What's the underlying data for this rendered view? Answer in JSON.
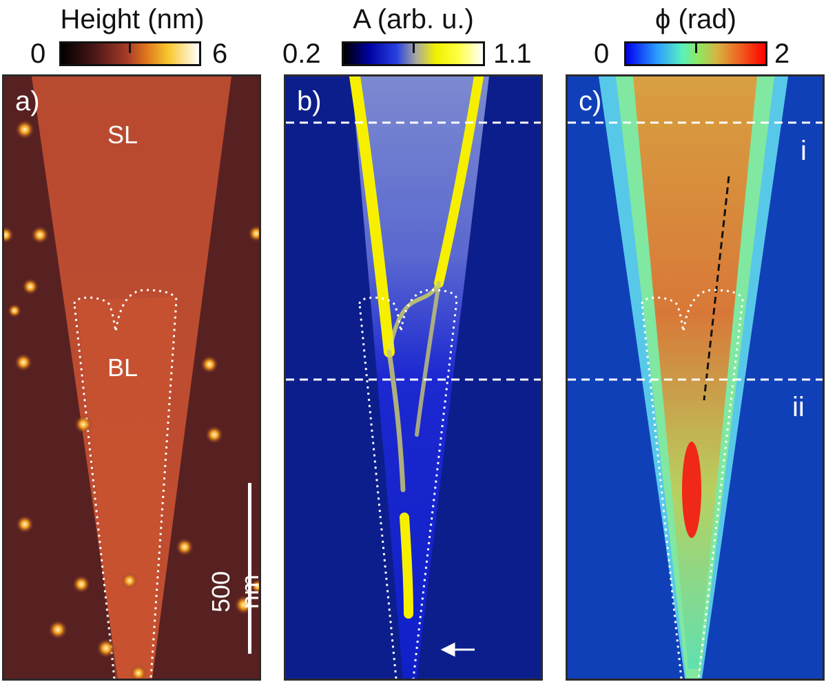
{
  "panels": [
    {
      "label": "a)",
      "colorbar": {
        "title": "Height (nm)",
        "min": "0",
        "max": "6"
      },
      "annotations": {
        "top_region": "SL",
        "bottom_region": "BL",
        "scale_bar": "500 nm"
      }
    },
    {
      "label": "b)",
      "colorbar": {
        "title": "A (arb. u.)",
        "min": "0.2",
        "max": "1.1"
      }
    },
    {
      "label": "c)",
      "colorbar": {
        "title": "ϕ (rad)",
        "min": "0",
        "max": "2"
      },
      "annotations": {
        "line_i": "i",
        "line_ii": "ii"
      }
    }
  ],
  "colors": {
    "height_map": [
      "#000000",
      "#5a1e1e",
      "#b2442a",
      "#f0a020",
      "#ffffff"
    ],
    "amplitude_map": [
      "#000000",
      "#0000c8",
      "#fff000",
      "#ffffff"
    ],
    "phase_map": [
      "#0000ff",
      "#3cc8ff",
      "#64f0a0",
      "#f06020",
      "#ff0000"
    ]
  }
}
